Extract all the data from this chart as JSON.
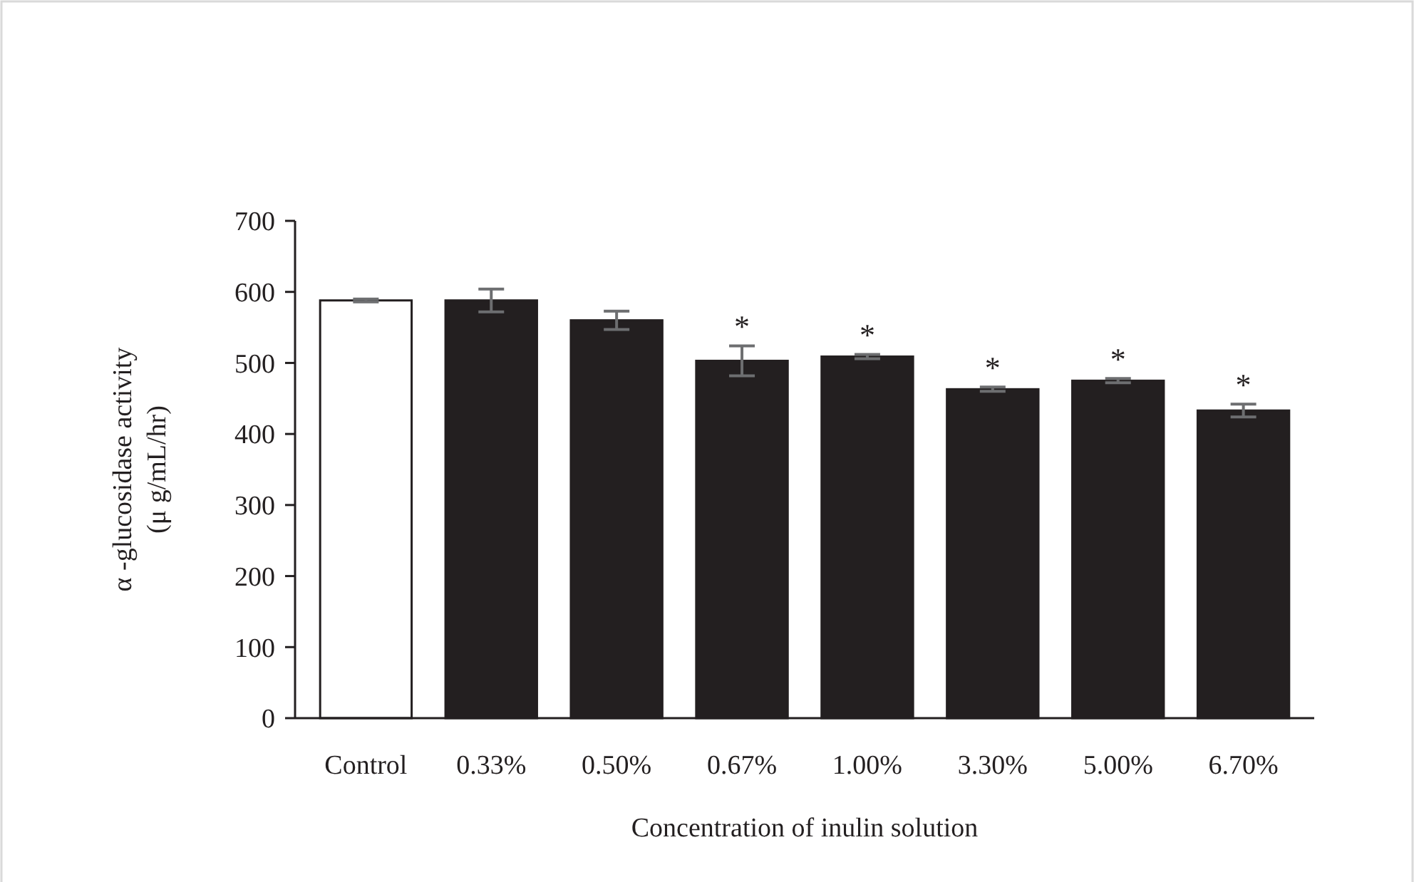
{
  "chart_data": {
    "type": "bar",
    "xlabel": "Concentration of inulin solution",
    "ylabel": "α -glucosidase activity\n(μ g/mL/hr)",
    "categories": [
      "Control",
      "0.33%",
      "0.50%",
      "0.67%",
      "1.00%",
      "3.30%",
      "5.00%",
      "6.70%"
    ],
    "values": [
      588,
      588,
      560,
      503,
      509,
      463,
      475,
      433
    ],
    "errors": [
      2,
      16,
      13,
      21,
      3,
      3,
      3,
      9
    ],
    "colors": [
      "#ffffff",
      "#231f20",
      "#231f20",
      "#231f20",
      "#231f20",
      "#231f20",
      "#231f20",
      "#231f20"
    ],
    "ylim": [
      0,
      700
    ],
    "yticks": [
      0,
      100,
      200,
      300,
      400,
      500,
      600,
      700
    ],
    "grid": false,
    "annotations": [
      {
        "text": "*",
        "x": "0.67%",
        "y": 524
      },
      {
        "text": "*",
        "x": "1.00%",
        "y": 512
      },
      {
        "text": "*",
        "x": "3.30%",
        "y": 466
      },
      {
        "text": "*",
        "x": "5.00%",
        "y": 478
      },
      {
        "text": "*",
        "x": "6.70%",
        "y": 442
      }
    ]
  }
}
